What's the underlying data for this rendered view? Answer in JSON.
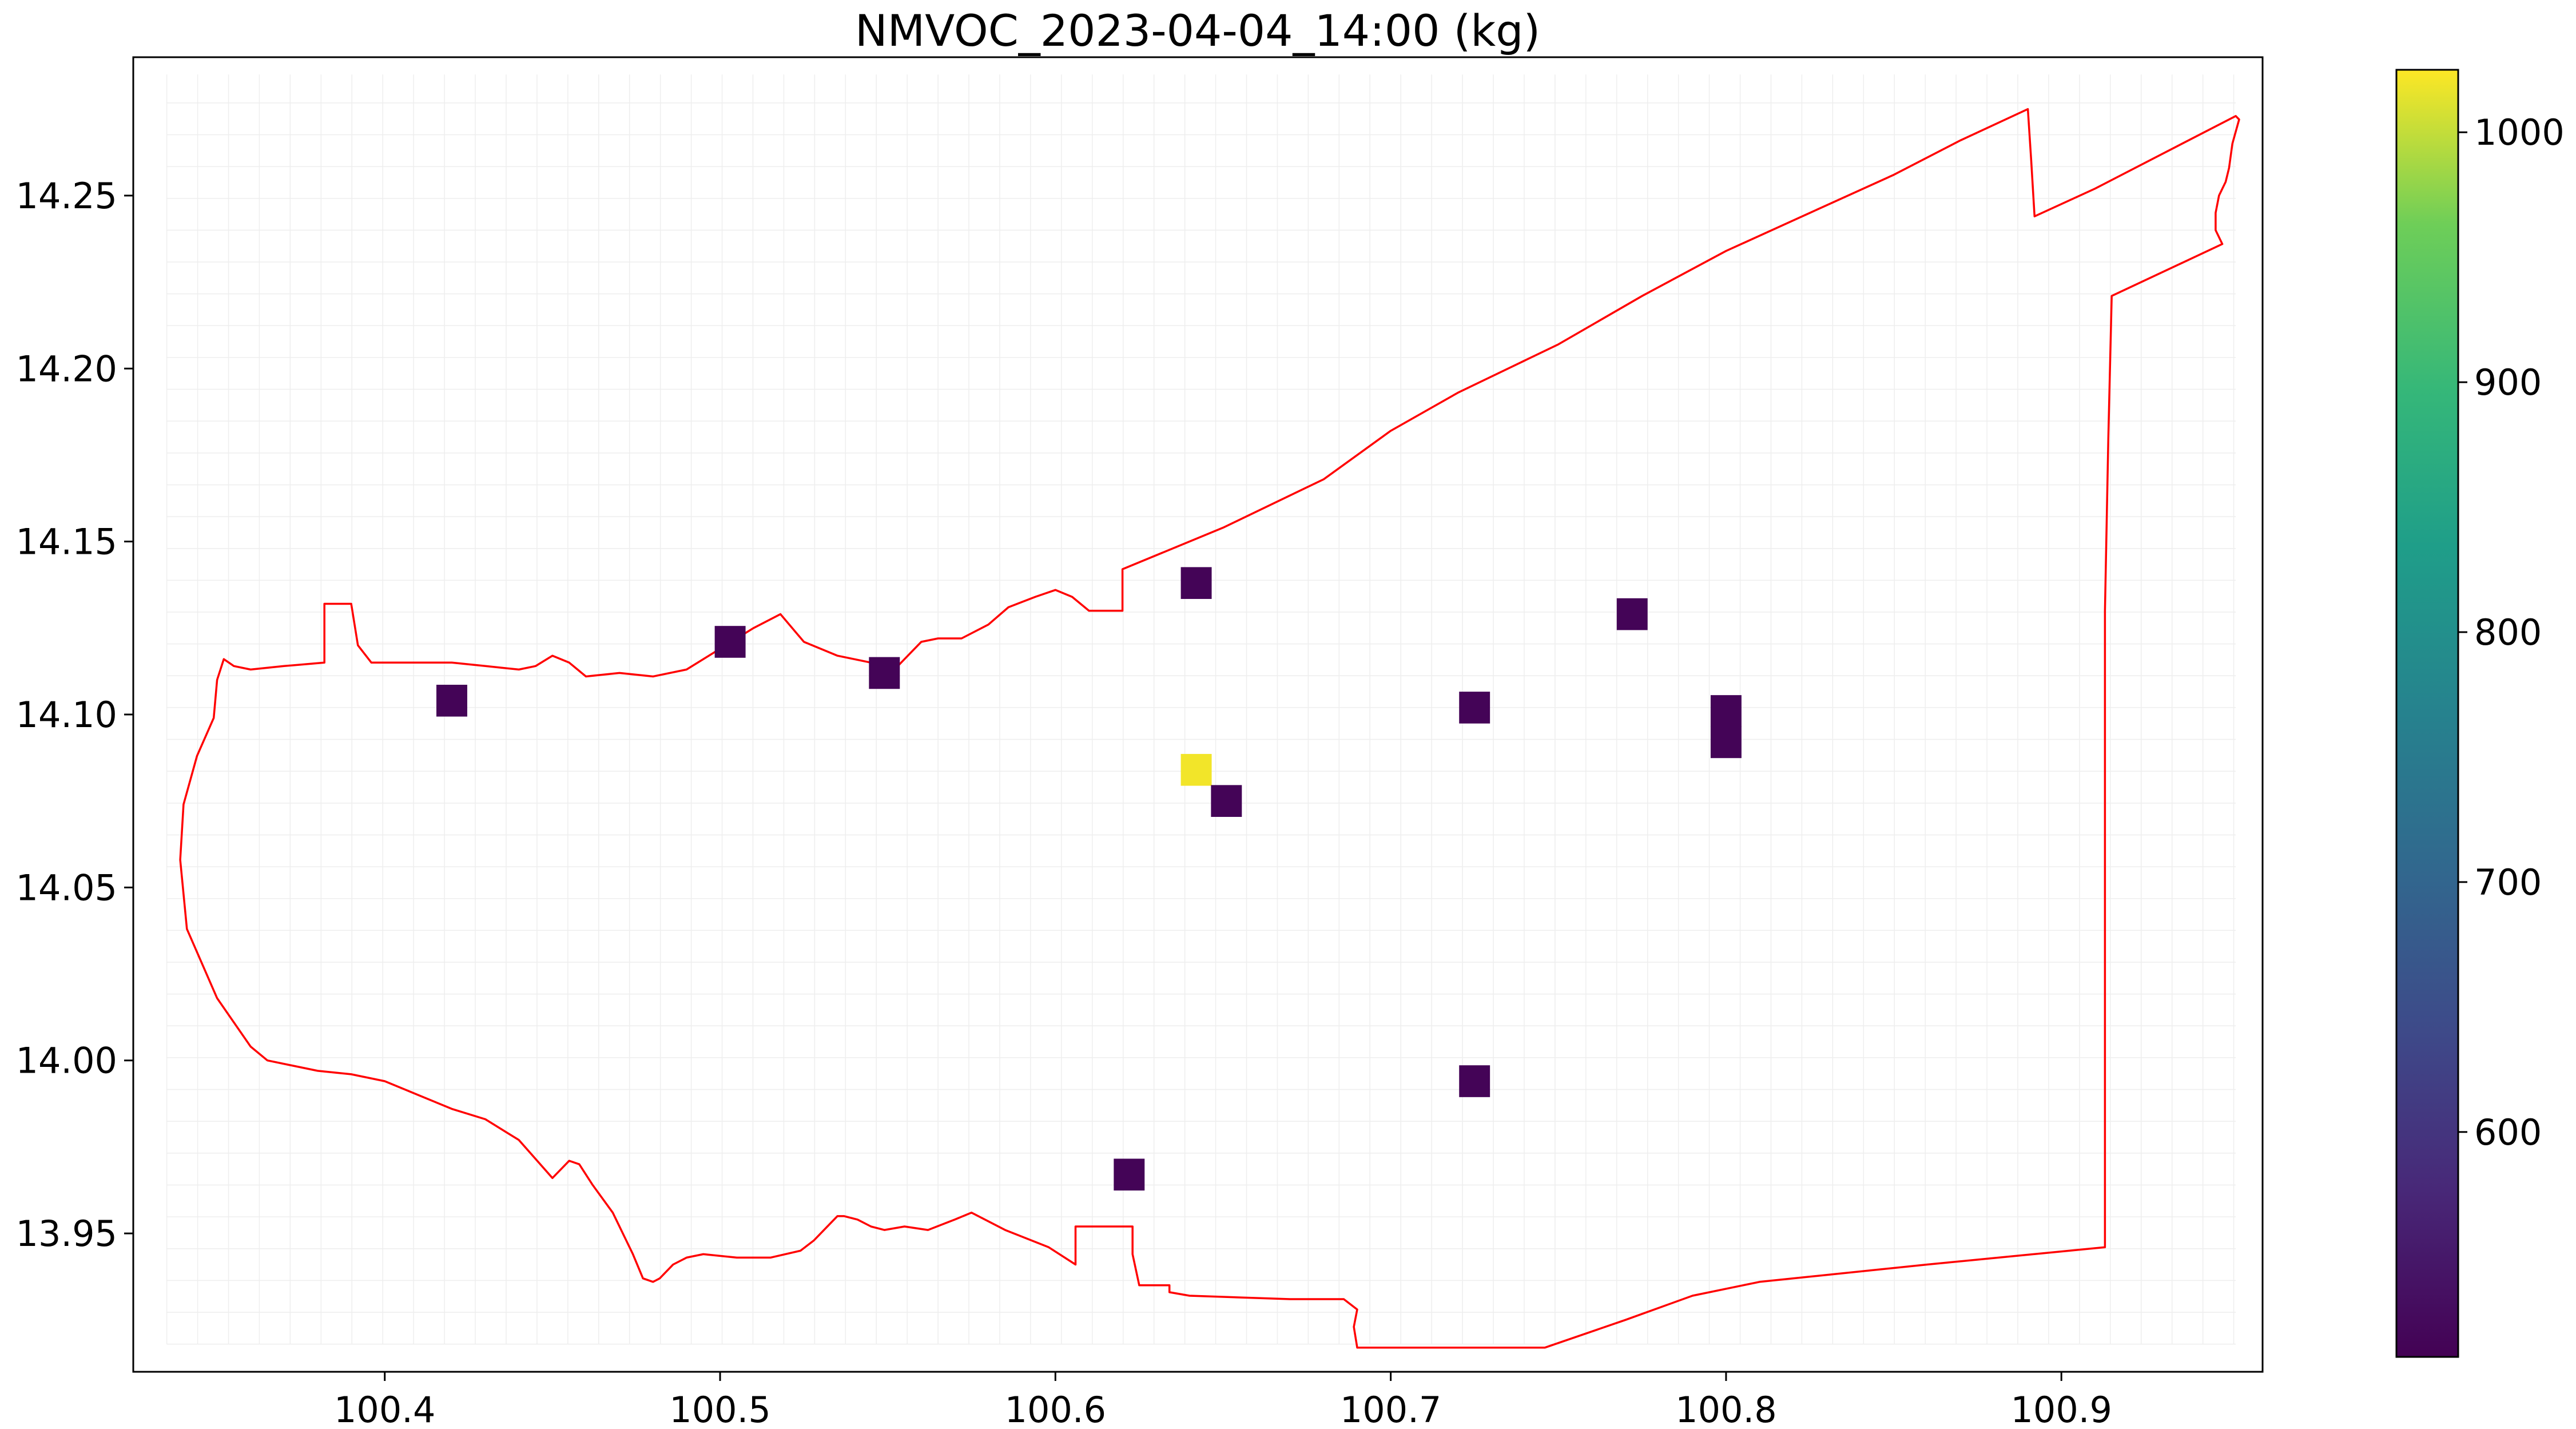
{
  "chart_data": {
    "type": "heatmap",
    "title": "NMVOC_2023-04-04_14:00 (kg)",
    "xlabel": "",
    "ylabel": "",
    "xlim": [
      100.325,
      100.96
    ],
    "ylim": [
      13.91,
      14.29
    ],
    "x_ticks": [
      "100.4",
      "100.5",
      "100.6",
      "100.7",
      "100.8",
      "100.9"
    ],
    "y_ticks": [
      "13.95",
      "14.00",
      "14.05",
      "14.10",
      "14.15",
      "14.20",
      "14.25"
    ],
    "grid": true,
    "colormap": "viridis",
    "colorbar": {
      "range": [
        510,
        1025
      ],
      "ticks": [
        "600",
        "700",
        "800",
        "900",
        "1000"
      ],
      "placement": "right"
    },
    "cells": [
      {
        "x": 100.42,
        "y": 14.104,
        "value": 515
      },
      {
        "x": 100.503,
        "y": 14.121,
        "value": 515
      },
      {
        "x": 100.549,
        "y": 14.112,
        "value": 515
      },
      {
        "x": 100.642,
        "y": 14.138,
        "value": 515
      },
      {
        "x": 100.772,
        "y": 14.129,
        "value": 515
      },
      {
        "x": 100.725,
        "y": 14.102,
        "value": 515
      },
      {
        "x": 100.8,
        "y": 14.101,
        "value": 515
      },
      {
        "x": 100.8,
        "y": 14.092,
        "value": 515
      },
      {
        "x": 100.642,
        "y": 14.084,
        "value": 1020
      },
      {
        "x": 100.651,
        "y": 14.075,
        "value": 515
      },
      {
        "x": 100.725,
        "y": 13.994,
        "value": 515
      },
      {
        "x": 100.622,
        "y": 13.967,
        "value": 515
      }
    ],
    "cell_size_deg": 0.0092,
    "boundary_color": "#ff0000",
    "boundary": [
      [
        100.953,
        14.272
      ],
      [
        100.951,
        14.265
      ],
      [
        100.95,
        14.258
      ],
      [
        100.949,
        14.254
      ],
      [
        100.947,
        14.25
      ],
      [
        100.946,
        14.245
      ],
      [
        100.946,
        14.24
      ],
      [
        100.948,
        14.236
      ],
      [
        100.915,
        14.221
      ],
      [
        100.914,
        14.18
      ],
      [
        100.913,
        14.13
      ],
      [
        100.913,
        14.1
      ],
      [
        100.913,
        13.946
      ],
      [
        100.86,
        13.941
      ],
      [
        100.81,
        13.936
      ],
      [
        100.79,
        13.932
      ],
      [
        100.77,
        13.925
      ],
      [
        100.746,
        13.917
      ],
      [
        100.72,
        13.917
      ],
      [
        100.69,
        13.917
      ],
      [
        100.689,
        13.923
      ],
      [
        100.69,
        13.928
      ],
      [
        100.686,
        13.931
      ],
      [
        100.67,
        13.931
      ],
      [
        100.64,
        13.932
      ],
      [
        100.634,
        13.933
      ],
      [
        100.634,
        13.935
      ],
      [
        100.625,
        13.935
      ],
      [
        100.623,
        13.944
      ],
      [
        100.623,
        13.952
      ],
      [
        100.606,
        13.952
      ],
      [
        100.606,
        13.941
      ],
      [
        100.598,
        13.946
      ],
      [
        100.585,
        13.951
      ],
      [
        100.575,
        13.956
      ],
      [
        100.57,
        13.954
      ],
      [
        100.562,
        13.951
      ],
      [
        100.555,
        13.952
      ],
      [
        100.549,
        13.951
      ],
      [
        100.545,
        13.952
      ],
      [
        100.541,
        13.954
      ],
      [
        100.537,
        13.955
      ],
      [
        100.535,
        13.955
      ],
      [
        100.532,
        13.952
      ],
      [
        100.528,
        13.948
      ],
      [
        100.524,
        13.945
      ],
      [
        100.515,
        13.943
      ],
      [
        100.505,
        13.943
      ],
      [
        100.495,
        13.944
      ],
      [
        100.49,
        13.943
      ],
      [
        100.486,
        13.941
      ],
      [
        100.482,
        13.937
      ],
      [
        100.48,
        13.936
      ],
      [
        100.477,
        13.937
      ],
      [
        100.474,
        13.944
      ],
      [
        100.468,
        13.956
      ],
      [
        100.462,
        13.964
      ],
      [
        100.458,
        13.97
      ],
      [
        100.455,
        13.971
      ],
      [
        100.45,
        13.966
      ],
      [
        100.44,
        13.977
      ],
      [
        100.43,
        13.983
      ],
      [
        100.42,
        13.986
      ],
      [
        100.41,
        13.99
      ],
      [
        100.4,
        13.994
      ],
      [
        100.39,
        13.996
      ],
      [
        100.38,
        13.997
      ],
      [
        100.365,
        14.0
      ],
      [
        100.36,
        14.004
      ],
      [
        100.35,
        14.018
      ],
      [
        100.341,
        14.038
      ],
      [
        100.339,
        14.058
      ],
      [
        100.34,
        14.074
      ],
      [
        100.344,
        14.088
      ],
      [
        100.349,
        14.099
      ],
      [
        100.35,
        14.11
      ],
      [
        100.352,
        14.116
      ],
      [
        100.355,
        14.114
      ],
      [
        100.36,
        14.113
      ],
      [
        100.37,
        14.114
      ],
      [
        100.382,
        14.115
      ],
      [
        100.382,
        14.132
      ],
      [
        100.39,
        14.132
      ],
      [
        100.392,
        14.12
      ],
      [
        100.396,
        14.115
      ],
      [
        100.41,
        14.115
      ],
      [
        100.42,
        14.115
      ],
      [
        100.43,
        14.114
      ],
      [
        100.44,
        14.113
      ],
      [
        100.445,
        14.114
      ],
      [
        100.45,
        14.117
      ],
      [
        100.455,
        14.115
      ],
      [
        100.46,
        14.111
      ],
      [
        100.47,
        14.112
      ],
      [
        100.48,
        14.111
      ],
      [
        100.49,
        14.113
      ],
      [
        100.5,
        14.119
      ],
      [
        100.51,
        14.125
      ],
      [
        100.518,
        14.129
      ],
      [
        100.525,
        14.121
      ],
      [
        100.535,
        14.117
      ],
      [
        100.545,
        14.115
      ],
      [
        100.55,
        14.111
      ],
      [
        100.555,
        14.116
      ],
      [
        100.56,
        14.121
      ],
      [
        100.565,
        14.122
      ],
      [
        100.572,
        14.122
      ],
      [
        100.58,
        14.126
      ],
      [
        100.586,
        14.131
      ],
      [
        100.594,
        14.134
      ],
      [
        100.6,
        14.136
      ],
      [
        100.605,
        14.134
      ],
      [
        100.61,
        14.13
      ],
      [
        100.62,
        14.13
      ],
      [
        100.62,
        14.142
      ],
      [
        100.65,
        14.154
      ],
      [
        100.68,
        14.168
      ],
      [
        100.7,
        14.182
      ],
      [
        100.72,
        14.193
      ],
      [
        100.75,
        14.207
      ],
      [
        100.775,
        14.221
      ],
      [
        100.8,
        14.234
      ],
      [
        100.825,
        14.245
      ],
      [
        100.85,
        14.256
      ],
      [
        100.87,
        14.266
      ],
      [
        100.89,
        14.275
      ],
      [
        100.891,
        14.26
      ],
      [
        100.892,
        14.244
      ],
      [
        100.91,
        14.252
      ],
      [
        100.93,
        14.262
      ],
      [
        100.952,
        14.273
      ]
    ]
  }
}
